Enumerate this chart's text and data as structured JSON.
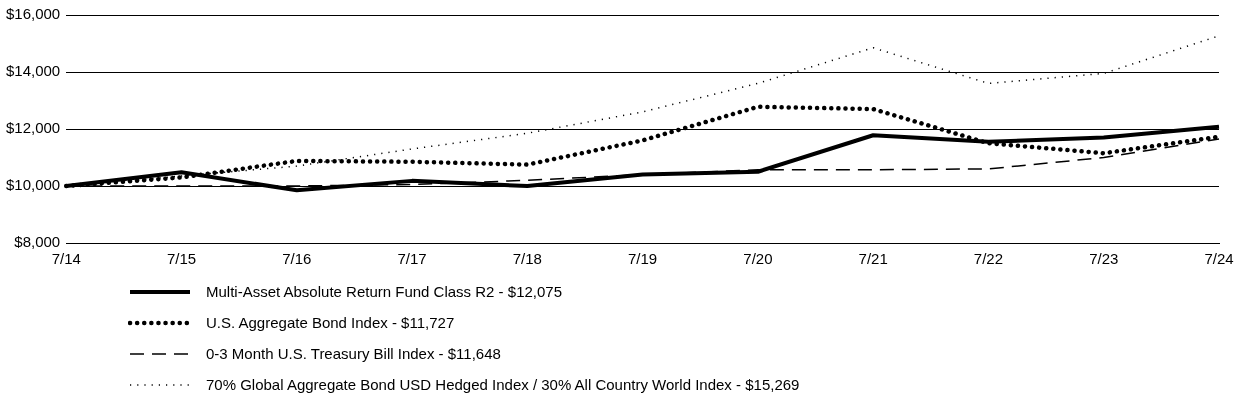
{
  "chart_data": {
    "type": "line",
    "categories": [
      "7/14",
      "7/15",
      "7/16",
      "7/17",
      "7/18",
      "7/19",
      "7/20",
      "7/21",
      "7/22",
      "7/23",
      "7/24"
    ],
    "ylim": [
      8000,
      16000
    ],
    "yticks": [
      {
        "value": 8000,
        "label": "$8,000"
      },
      {
        "value": 10000,
        "label": "$10,000"
      },
      {
        "value": 12000,
        "label": "$12,000"
      },
      {
        "value": 14000,
        "label": "$14,000"
      },
      {
        "value": 16000,
        "label": "$16,000"
      }
    ],
    "grid": "y",
    "legend": "bottom",
    "marker": "none",
    "series": [
      {
        "name": "Multi-Asset Absolute Return Fund Class R2 - $12,075",
        "color": "#000000",
        "line_style": "solid",
        "values": [
          10000,
          10480,
          9850,
          10180,
          10000,
          10400,
          10500,
          11780,
          11550,
          11700,
          12075
        ]
      },
      {
        "name": "U.S. Aggregate Bond Index - $11,727",
        "color": "#000000",
        "line_style": "dotted",
        "values": [
          10000,
          10300,
          10880,
          10850,
          10750,
          11600,
          12780,
          12700,
          11500,
          11150,
          11727
        ]
      },
      {
        "name": "0-3 Month U.S. Treasury Bill Index - $11,648",
        "color": "#000000",
        "line_style": "dashed",
        "values": [
          10000,
          10000,
          10000,
          10050,
          10200,
          10400,
          10570,
          10570,
          10600,
          11000,
          11648
        ]
      },
      {
        "name": "70% Global Aggregate Bond USD Hedged Index / 30% All Country World Index - $15,269",
        "color": "#000000",
        "line_style": "finedotted",
        "values": [
          10000,
          10350,
          10700,
          11300,
          11850,
          12600,
          13600,
          14850,
          13600,
          13950,
          15269
        ]
      }
    ]
  }
}
